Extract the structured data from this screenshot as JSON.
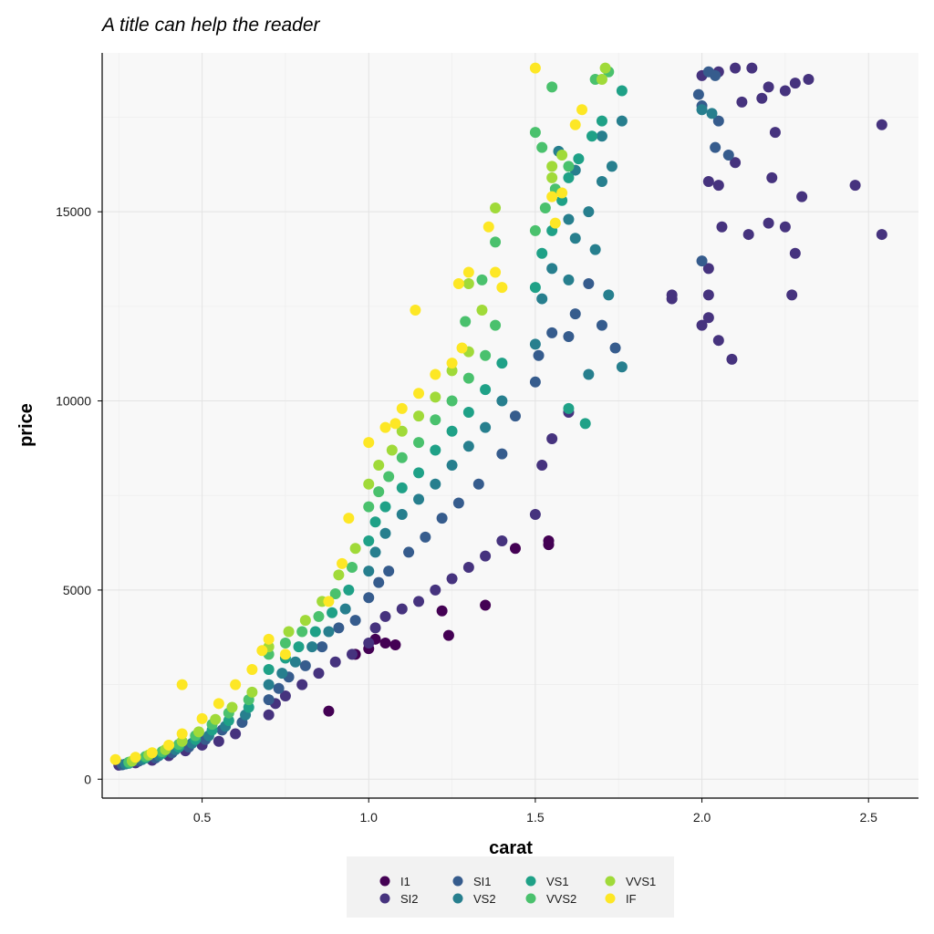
{
  "chart_data": {
    "type": "scatter",
    "title": "A title can help the reader",
    "xlabel": "carat",
    "ylabel": "price",
    "xlim": [
      0.2,
      2.65
    ],
    "ylim": [
      -500,
      19200
    ],
    "x_ticks": [
      0.5,
      1.0,
      1.5,
      2.0,
      2.5
    ],
    "x_tick_labels": [
      "0.5",
      "1.0",
      "1.5",
      "2.0",
      "2.5"
    ],
    "y_ticks": [
      0,
      5000,
      10000,
      15000
    ],
    "y_tick_labels": [
      "0",
      "5000",
      "10000",
      "15000"
    ],
    "grid": true,
    "legend_position": "bottom",
    "series": [
      {
        "name": "I1",
        "color": "#440154",
        "points": [
          [
            0.96,
            3300
          ],
          [
            1.0,
            3450
          ],
          [
            1.05,
            3600
          ],
          [
            1.22,
            4450
          ],
          [
            1.35,
            4600
          ],
          [
            1.24,
            3800
          ],
          [
            1.02,
            3700
          ],
          [
            0.88,
            1800
          ],
          [
            1.44,
            6100
          ],
          [
            1.54,
            6200
          ],
          [
            1.54,
            6300
          ],
          [
            1.08,
            3550
          ]
        ]
      },
      {
        "name": "SI2",
        "color": "#46337e",
        "points": [
          [
            0.25,
            370
          ],
          [
            0.3,
            430
          ],
          [
            0.35,
            500
          ],
          [
            0.4,
            620
          ],
          [
            0.45,
            750
          ],
          [
            0.5,
            900
          ],
          [
            0.55,
            1000
          ],
          [
            0.6,
            1200
          ],
          [
            0.7,
            1700
          ],
          [
            0.72,
            2000
          ],
          [
            0.75,
            2200
          ],
          [
            0.8,
            2500
          ],
          [
            0.85,
            2800
          ],
          [
            0.9,
            3100
          ],
          [
            0.95,
            3300
          ],
          [
            1.0,
            3600
          ],
          [
            1.02,
            4000
          ],
          [
            1.05,
            4300
          ],
          [
            1.1,
            4500
          ],
          [
            1.15,
            4700
          ],
          [
            1.2,
            5000
          ],
          [
            1.25,
            5300
          ],
          [
            1.3,
            5600
          ],
          [
            1.35,
            5900
          ],
          [
            1.4,
            6300
          ],
          [
            1.5,
            7000
          ],
          [
            1.52,
            8300
          ],
          [
            1.55,
            9000
          ],
          [
            1.6,
            9700
          ],
          [
            2.0,
            12000
          ],
          [
            2.02,
            12200
          ],
          [
            2.05,
            11600
          ],
          [
            2.09,
            11100
          ],
          [
            2.02,
            15800
          ],
          [
            2.05,
            15700
          ],
          [
            2.1,
            16300
          ],
          [
            2.14,
            14400
          ],
          [
            2.2,
            14700
          ],
          [
            2.25,
            14600
          ],
          [
            2.28,
            13900
          ],
          [
            2.27,
            12800
          ],
          [
            2.3,
            15400
          ],
          [
            2.46,
            15700
          ],
          [
            2.54,
            14400
          ],
          [
            2.54,
            17300
          ],
          [
            2.0,
            18600
          ],
          [
            2.05,
            18700
          ],
          [
            2.1,
            18800
          ],
          [
            2.15,
            18800
          ],
          [
            2.2,
            18300
          ],
          [
            2.25,
            18200
          ],
          [
            2.32,
            18500
          ],
          [
            2.28,
            18400
          ],
          [
            2.18,
            18000
          ],
          [
            2.12,
            17900
          ],
          [
            2.22,
            17100
          ],
          [
            2.21,
            15900
          ],
          [
            1.91,
            12700
          ],
          [
            1.91,
            12800
          ],
          [
            2.02,
            13500
          ],
          [
            2.02,
            12800
          ],
          [
            2.06,
            14600
          ]
        ]
      },
      {
        "name": "SI1",
        "color": "#365c8d",
        "points": [
          [
            0.26,
            380
          ],
          [
            0.31,
            480
          ],
          [
            0.36,
            560
          ],
          [
            0.41,
            700
          ],
          [
            0.46,
            850
          ],
          [
            0.51,
            1050
          ],
          [
            0.56,
            1300
          ],
          [
            0.62,
            1500
          ],
          [
            0.7,
            2100
          ],
          [
            0.73,
            2400
          ],
          [
            0.76,
            2700
          ],
          [
            0.81,
            3000
          ],
          [
            0.86,
            3500
          ],
          [
            0.91,
            4000
          ],
          [
            0.96,
            4200
          ],
          [
            1.0,
            4800
          ],
          [
            1.03,
            5200
          ],
          [
            1.06,
            5500
          ],
          [
            1.12,
            6000
          ],
          [
            1.17,
            6400
          ],
          [
            1.22,
            6900
          ],
          [
            1.27,
            7300
          ],
          [
            1.33,
            7800
          ],
          [
            1.4,
            8600
          ],
          [
            1.44,
            9600
          ],
          [
            1.5,
            10500
          ],
          [
            1.51,
            11200
          ],
          [
            1.55,
            11800
          ],
          [
            1.6,
            11700
          ],
          [
            1.62,
            12300
          ],
          [
            1.66,
            13100
          ],
          [
            1.7,
            12000
          ],
          [
            1.74,
            11400
          ],
          [
            2.0,
            13700
          ],
          [
            2.0,
            17800
          ],
          [
            2.05,
            17400
          ],
          [
            2.02,
            18700
          ],
          [
            2.04,
            18600
          ],
          [
            1.99,
            18100
          ],
          [
            2.04,
            16700
          ],
          [
            2.08,
            16500
          ]
        ]
      },
      {
        "name": "VS2",
        "color": "#277f8e",
        "points": [
          [
            0.27,
            400
          ],
          [
            0.32,
            520
          ],
          [
            0.37,
            620
          ],
          [
            0.42,
            780
          ],
          [
            0.47,
            950
          ],
          [
            0.52,
            1150
          ],
          [
            0.57,
            1400
          ],
          [
            0.63,
            1700
          ],
          [
            0.7,
            2500
          ],
          [
            0.74,
            2800
          ],
          [
            0.78,
            3100
          ],
          [
            0.83,
            3500
          ],
          [
            0.88,
            3900
          ],
          [
            0.93,
            4500
          ],
          [
            1.0,
            5500
          ],
          [
            1.02,
            6000
          ],
          [
            1.05,
            6500
          ],
          [
            1.1,
            7000
          ],
          [
            1.15,
            7400
          ],
          [
            1.2,
            7800
          ],
          [
            1.25,
            8300
          ],
          [
            1.3,
            8800
          ],
          [
            1.35,
            9300
          ],
          [
            1.4,
            10000
          ],
          [
            1.5,
            11500
          ],
          [
            1.52,
            12700
          ],
          [
            1.55,
            13500
          ],
          [
            1.6,
            13200
          ],
          [
            1.62,
            14300
          ],
          [
            1.66,
            15000
          ],
          [
            1.7,
            15800
          ],
          [
            1.73,
            16200
          ],
          [
            1.76,
            17400
          ],
          [
            1.68,
            14000
          ],
          [
            1.6,
            14800
          ],
          [
            1.57,
            16600
          ],
          [
            1.62,
            16100
          ],
          [
            1.7,
            17000
          ],
          [
            1.66,
            10700
          ],
          [
            1.72,
            12800
          ],
          [
            1.76,
            10900
          ],
          [
            2.0,
            17700
          ],
          [
            2.03,
            17600
          ]
        ]
      },
      {
        "name": "VS1",
        "color": "#1fa187",
        "points": [
          [
            0.28,
            420
          ],
          [
            0.33,
            560
          ],
          [
            0.38,
            680
          ],
          [
            0.43,
            850
          ],
          [
            0.48,
            1050
          ],
          [
            0.53,
            1300
          ],
          [
            0.58,
            1550
          ],
          [
            0.64,
            1900
          ],
          [
            0.7,
            2900
          ],
          [
            0.75,
            3200
          ],
          [
            0.79,
            3500
          ],
          [
            0.84,
            3900
          ],
          [
            0.89,
            4400
          ],
          [
            0.94,
            5000
          ],
          [
            1.0,
            6300
          ],
          [
            1.02,
            6800
          ],
          [
            1.05,
            7200
          ],
          [
            1.1,
            7700
          ],
          [
            1.15,
            8100
          ],
          [
            1.2,
            8700
          ],
          [
            1.25,
            9200
          ],
          [
            1.3,
            9700
          ],
          [
            1.35,
            10300
          ],
          [
            1.4,
            11000
          ],
          [
            1.5,
            13000
          ],
          [
            1.52,
            13900
          ],
          [
            1.55,
            14500
          ],
          [
            1.58,
            15300
          ],
          [
            1.6,
            15900
          ],
          [
            1.63,
            16400
          ],
          [
            1.67,
            17000
          ],
          [
            1.7,
            17400
          ],
          [
            1.76,
            18200
          ],
          [
            1.65,
            9400
          ],
          [
            1.6,
            9800
          ]
        ]
      },
      {
        "name": "VVS2",
        "color": "#4ac16d",
        "points": [
          [
            0.28,
            450
          ],
          [
            0.33,
            600
          ],
          [
            0.38,
            730
          ],
          [
            0.43,
            920
          ],
          [
            0.48,
            1150
          ],
          [
            0.53,
            1450
          ],
          [
            0.58,
            1750
          ],
          [
            0.64,
            2100
          ],
          [
            0.7,
            3300
          ],
          [
            0.75,
            3600
          ],
          [
            0.8,
            3900
          ],
          [
            0.85,
            4300
          ],
          [
            0.9,
            4900
          ],
          [
            0.95,
            5600
          ],
          [
            1.0,
            7200
          ],
          [
            1.03,
            7600
          ],
          [
            1.06,
            8000
          ],
          [
            1.1,
            8500
          ],
          [
            1.15,
            8900
          ],
          [
            1.2,
            9500
          ],
          [
            1.25,
            10000
          ],
          [
            1.3,
            10600
          ],
          [
            1.35,
            11200
          ],
          [
            1.38,
            12000
          ],
          [
            1.34,
            13200
          ],
          [
            1.5,
            14500
          ],
          [
            1.53,
            15100
          ],
          [
            1.56,
            15600
          ],
          [
            1.6,
            16200
          ],
          [
            1.5,
            17100
          ],
          [
            1.52,
            16700
          ],
          [
            1.55,
            18300
          ],
          [
            1.68,
            18500
          ],
          [
            1.72,
            18700
          ],
          [
            1.38,
            14200
          ],
          [
            1.29,
            12100
          ]
        ]
      },
      {
        "name": "VVS1",
        "color": "#a0da39",
        "points": [
          [
            0.29,
            480
          ],
          [
            0.34,
            640
          ],
          [
            0.39,
            780
          ],
          [
            0.44,
            1000
          ],
          [
            0.49,
            1250
          ],
          [
            0.54,
            1580
          ],
          [
            0.59,
            1900
          ],
          [
            0.65,
            2300
          ],
          [
            0.7,
            3500
          ],
          [
            0.76,
            3900
          ],
          [
            0.81,
            4200
          ],
          [
            0.86,
            4700
          ],
          [
            0.91,
            5400
          ],
          [
            0.96,
            6100
          ],
          [
            1.0,
            7800
          ],
          [
            1.03,
            8300
          ],
          [
            1.07,
            8700
          ],
          [
            1.1,
            9200
          ],
          [
            1.15,
            9600
          ],
          [
            1.2,
            10100
          ],
          [
            1.25,
            10800
          ],
          [
            1.3,
            11300
          ],
          [
            1.34,
            12400
          ],
          [
            1.3,
            13100
          ],
          [
            1.38,
            15100
          ],
          [
            1.55,
            15900
          ],
          [
            1.58,
            16500
          ],
          [
            1.7,
            18500
          ],
          [
            1.71,
            18800
          ],
          [
            1.55,
            16200
          ]
        ]
      },
      {
        "name": "IF",
        "color": "#fde725",
        "points": [
          [
            0.24,
            520
          ],
          [
            0.3,
            580
          ],
          [
            0.35,
            700
          ],
          [
            0.4,
            900
          ],
          [
            0.44,
            1200
          ],
          [
            0.44,
            2500
          ],
          [
            0.5,
            1600
          ],
          [
            0.55,
            2000
          ],
          [
            0.6,
            2500
          ],
          [
            0.65,
            2900
          ],
          [
            0.68,
            3400
          ],
          [
            0.7,
            3700
          ],
          [
            0.75,
            3300
          ],
          [
            0.88,
            4700
          ],
          [
            0.92,
            5700
          ],
          [
            0.94,
            6900
          ],
          [
            1.0,
            8900
          ],
          [
            1.05,
            9300
          ],
          [
            1.1,
            9800
          ],
          [
            1.15,
            10200
          ],
          [
            1.2,
            10700
          ],
          [
            1.25,
            11000
          ],
          [
            1.28,
            11400
          ],
          [
            1.27,
            13100
          ],
          [
            1.3,
            13400
          ],
          [
            1.38,
            13400
          ],
          [
            1.4,
            13000
          ],
          [
            1.36,
            14600
          ],
          [
            1.14,
            12400
          ],
          [
            1.08,
            9400
          ],
          [
            1.5,
            18800
          ],
          [
            1.62,
            17300
          ],
          [
            1.64,
            17700
          ],
          [
            1.58,
            15500
          ],
          [
            1.55,
            15400
          ],
          [
            1.56,
            14700
          ]
        ]
      }
    ]
  }
}
